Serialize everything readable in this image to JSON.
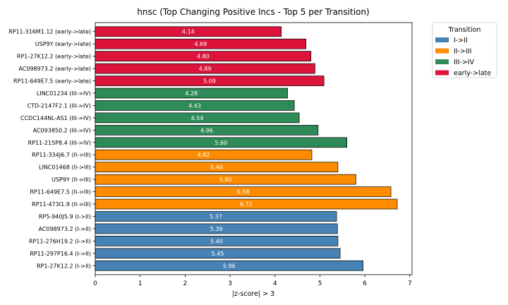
{
  "chart_data": {
    "type": "bar",
    "orientation": "horizontal",
    "title": "hnsc (Top Changing Positive lncs - Top 5 per Transition)",
    "xlabel": "|z-score| > 3",
    "ylabel": "",
    "xlim": [
      0,
      7.05
    ],
    "xticks": [
      "0",
      "1",
      "2",
      "3",
      "4",
      "5",
      "6",
      "7"
    ],
    "grid": false,
    "legend": {
      "title": "Transition",
      "placement": "outside-top-right",
      "entries": [
        {
          "label": "I->II",
          "color": "#4682b4"
        },
        {
          "label": "II->III",
          "color": "#ff8c00"
        },
        {
          "label": "III->IV",
          "color": "#2e8b57"
        },
        {
          "label": "early->late",
          "color": "#dc143c"
        }
      ]
    },
    "bars": [
      {
        "label": "RP11-316M1.12 (early->late)",
        "value": 4.14,
        "value_label": "4.14",
        "group": "early->late",
        "color": "#dc143c"
      },
      {
        "label": "USP9Y (early->late)",
        "value": 4.69,
        "value_label": "4.69",
        "group": "early->late",
        "color": "#dc143c"
      },
      {
        "label": "RP1-27K12.2 (early->late)",
        "value": 4.8,
        "value_label": "4.80",
        "group": "early->late",
        "color": "#dc143c"
      },
      {
        "label": "AC098973.2 (early->late)",
        "value": 4.89,
        "value_label": "4.89",
        "group": "early->late",
        "color": "#dc143c"
      },
      {
        "label": "RP11-649E7.5 (early->late)",
        "value": 5.09,
        "value_label": "5.09",
        "group": "early->late",
        "color": "#dc143c"
      },
      {
        "label": "LINC01234 (III->IV)",
        "value": 4.28,
        "value_label": "4.28",
        "group": "III->IV",
        "color": "#2e8b57"
      },
      {
        "label": "CTD-2147F2.1 (III->IV)",
        "value": 4.43,
        "value_label": "4.43",
        "group": "III->IV",
        "color": "#2e8b57"
      },
      {
        "label": "CCDC144NL-AS1 (III->IV)",
        "value": 4.54,
        "value_label": "4.54",
        "group": "III->IV",
        "color": "#2e8b57"
      },
      {
        "label": "AC093850.2 (III->IV)",
        "value": 4.96,
        "value_label": "4.96",
        "group": "III->IV",
        "color": "#2e8b57"
      },
      {
        "label": "RP11-215P8.4 (III->IV)",
        "value": 5.6,
        "value_label": "5.60",
        "group": "III->IV",
        "color": "#2e8b57"
      },
      {
        "label": "RP11-334J6.7 (II->III)",
        "value": 4.82,
        "value_label": "4.82",
        "group": "II->III",
        "color": "#ff8c00"
      },
      {
        "label": "LINC01468 (II->III)",
        "value": 5.4,
        "value_label": "5.40",
        "group": "II->III",
        "color": "#ff8c00"
      },
      {
        "label": "USP9Y (II->III)",
        "value": 5.8,
        "value_label": "5.80",
        "group": "II->III",
        "color": "#ff8c00"
      },
      {
        "label": "RP11-649E7.5 (II->III)",
        "value": 6.58,
        "value_label": "6.58",
        "group": "II->III",
        "color": "#ff8c00"
      },
      {
        "label": "RP11-473I1.9 (II->III)",
        "value": 6.72,
        "value_label": "6.72",
        "group": "II->III",
        "color": "#ff8c00"
      },
      {
        "label": "RP5-940J5.9 (I->II)",
        "value": 5.37,
        "value_label": "5.37",
        "group": "I->II",
        "color": "#4682b4"
      },
      {
        "label": "AC098973.2 (I->II)",
        "value": 5.39,
        "value_label": "5.39",
        "group": "I->II",
        "color": "#4682b4"
      },
      {
        "label": "RP11-276H19.2 (I->II)",
        "value": 5.4,
        "value_label": "5.40",
        "group": "I->II",
        "color": "#4682b4"
      },
      {
        "label": "RP11-297P16.4 (I->II)",
        "value": 5.45,
        "value_label": "5.45",
        "group": "I->II",
        "color": "#4682b4"
      },
      {
        "label": "RP1-27K12.2 (I->II)",
        "value": 5.96,
        "value_label": "5.96",
        "group": "I->II",
        "color": "#4682b4"
      }
    ]
  }
}
